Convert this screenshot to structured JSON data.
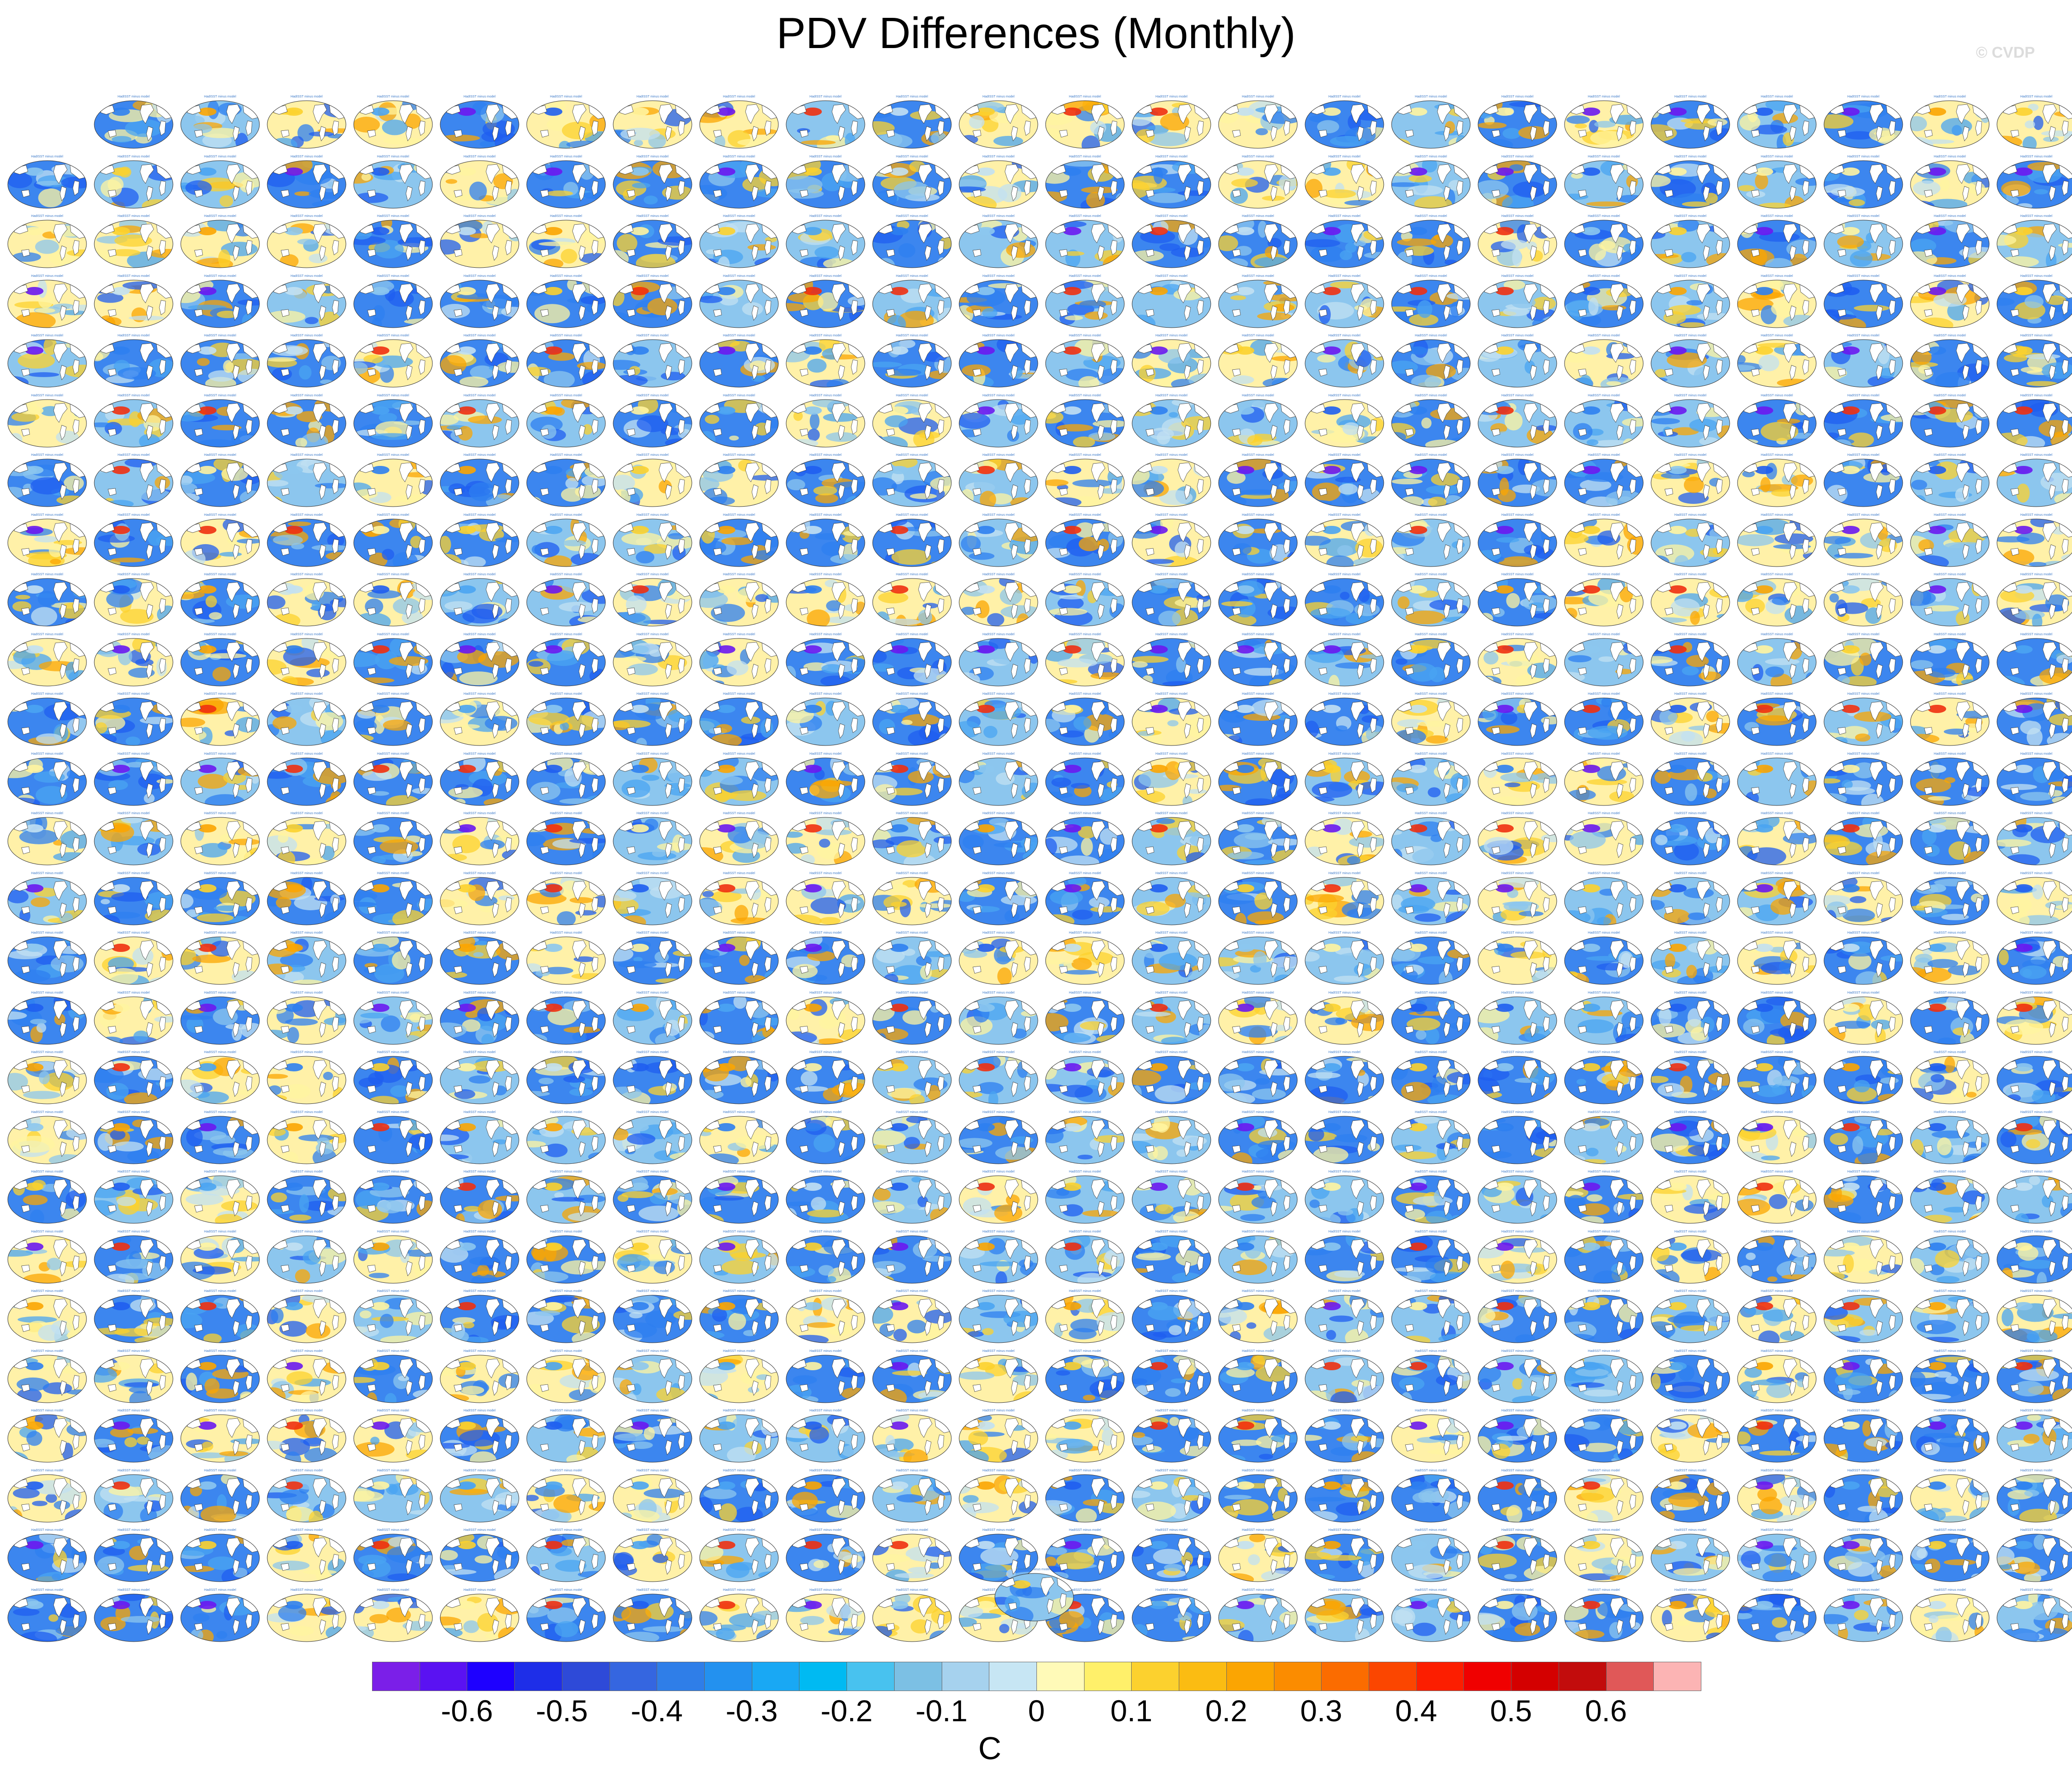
{
  "title": "PDV Differences (Monthly)",
  "copyright": "© CVDP",
  "panels": {
    "rows": 26,
    "cols": 24,
    "first_row_missing_leading": 1,
    "last_row_extra_panel": true,
    "panel_title_placeholder": "HadISST minus model"
  },
  "colorbar": {
    "colors": [
      "#7b1fe8",
      "#5a12f2",
      "#1e00ff",
      "#1e2ee8",
      "#2e4ad8",
      "#3566e0",
      "#2f7ee8",
      "#2391ef",
      "#19a8f4",
      "#00baf2",
      "#48c2ef",
      "#7cc0e4",
      "#a6d2ee",
      "#c7e6f4",
      "#fffab8",
      "#fff06a",
      "#fcd12e",
      "#fbbc12",
      "#fba502",
      "#fb8c00",
      "#fb6c00",
      "#fb4600",
      "#fc1e00",
      "#f00000",
      "#d40000",
      "#c20c0c",
      "#e05858",
      "#fcb4b4"
    ],
    "labels": [
      "-0.6",
      "-0.5",
      "-0.4",
      "-0.3",
      "-0.2",
      "-0.1",
      "0",
      "0.1",
      "0.2",
      "0.3",
      "0.4",
      "0.5",
      "0.6"
    ],
    "unit": "C"
  }
}
